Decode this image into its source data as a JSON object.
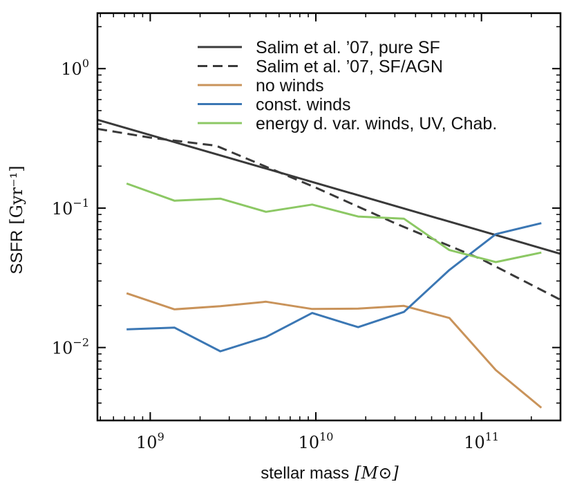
{
  "chart_data": {
    "type": "line",
    "title": "",
    "xlabel": "stellar mass",
    "xlabel_unit": "[M⊙]",
    "ylabel": "SSFR",
    "ylabel_unit": "[Gyr⁻¹]",
    "xscale": "log",
    "yscale": "log",
    "xlim": [
      480000000.0,
      300000000000.0
    ],
    "ylim": [
      0.003,
      2.5
    ],
    "x_ticks": [
      {
        "value": 1000000000.0,
        "base": "10",
        "exp": "9"
      },
      {
        "value": 10000000000.0,
        "base": "10",
        "exp": "10"
      },
      {
        "value": 100000000000.0,
        "base": "10",
        "exp": "11"
      }
    ],
    "y_ticks": [
      {
        "value": 1,
        "base": "10",
        "exp": "0"
      },
      {
        "value": 0.1,
        "base": "10",
        "exp": "−1"
      },
      {
        "value": 0.01,
        "base": "10",
        "exp": "−2"
      }
    ],
    "legend_position": "top-right",
    "series": [
      {
        "name": "Salim et al. ’07, pure SF",
        "color": "#3a3a3a",
        "dash": "solid",
        "x": [
          480000000.0,
          300000000000.0
        ],
        "y": [
          0.43,
          0.047
        ]
      },
      {
        "name": "Salim et al. ’07, SF/AGN",
        "color": "#3a3a3a",
        "dash": "dashed",
        "x": [
          480000000.0,
          1000000000.0,
          2500000000.0,
          10000000000.0,
          30000000000.0,
          100000000000.0,
          300000000000.0
        ],
        "y": [
          0.37,
          0.32,
          0.28,
          0.14,
          0.078,
          0.043,
          0.022
        ]
      },
      {
        "name": "no winds",
        "color": "#c9935a",
        "dash": "solid",
        "x": [
          720000000.0,
          1400000000.0,
          2650000000.0,
          5000000000.0,
          9500000000.0,
          18000000000.0,
          34000000000.0,
          64000000000.0,
          122000000000.0,
          230000000000.0
        ],
        "y": [
          0.0245,
          0.0188,
          0.0198,
          0.0213,
          0.0189,
          0.019,
          0.0199,
          0.0163,
          0.0069,
          0.0037
        ]
      },
      {
        "name": "const. winds",
        "color": "#3b77b4",
        "dash": "solid",
        "x": [
          720000000.0,
          1400000000.0,
          2650000000.0,
          5000000000.0,
          9500000000.0,
          18000000000.0,
          34000000000.0,
          64000000000.0,
          122000000000.0,
          230000000000.0
        ],
        "y": [
          0.0135,
          0.0139,
          0.0094,
          0.0119,
          0.0177,
          0.014,
          0.018,
          0.036,
          0.065,
          0.078
        ]
      },
      {
        "name": "energy d. var. winds, UV, Chab.",
        "color": "#8cc864",
        "dash": "solid",
        "x": [
          720000000.0,
          1400000000.0,
          2650000000.0,
          5000000000.0,
          9500000000.0,
          18000000000.0,
          34000000000.0,
          64000000000.0,
          122000000000.0,
          230000000000.0
        ],
        "y": [
          0.15,
          0.113,
          0.117,
          0.094,
          0.106,
          0.087,
          0.084,
          0.05,
          0.041,
          0.048
        ]
      }
    ]
  }
}
